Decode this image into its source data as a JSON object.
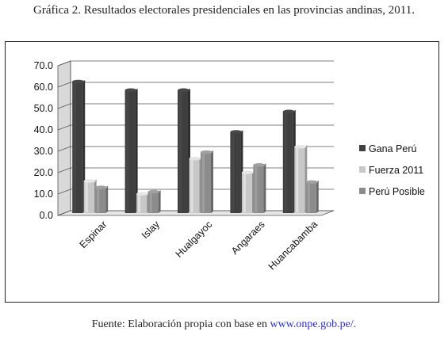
{
  "caption": "Gráfica 2. Resultados electorales presidenciales en las provincias andinas, 2011.",
  "source": {
    "prefix": "Fuente: Elaboración propia con base en ",
    "link": "www.onpe.gob.pe/."
  },
  "chart_data": {
    "type": "bar",
    "categories": [
      "Espinar",
      "Islay",
      "Hualgayoc",
      "Angaraes",
      "Huancabamba"
    ],
    "series": [
      {
        "name": "Gana Perú",
        "values": [
          61.5,
          57.5,
          57.5,
          38,
          47.5
        ],
        "color": "#3f3f3f"
      },
      {
        "name": "Fuerza 2011",
        "values": [
          15,
          9,
          25.5,
          19,
          31
        ],
        "color": "#c8c8c8"
      },
      {
        "name": "Perú Posible",
        "values": [
          12,
          10,
          28.5,
          22.5,
          14.5
        ],
        "color": "#8c8c8c"
      }
    ],
    "ylim": [
      0,
      70
    ],
    "yticks": [
      "0.0",
      "10.0",
      "20.0",
      "30.0",
      "40.0",
      "50.0",
      "60.0",
      "70.0"
    ],
    "grid": true,
    "legend": "right"
  }
}
